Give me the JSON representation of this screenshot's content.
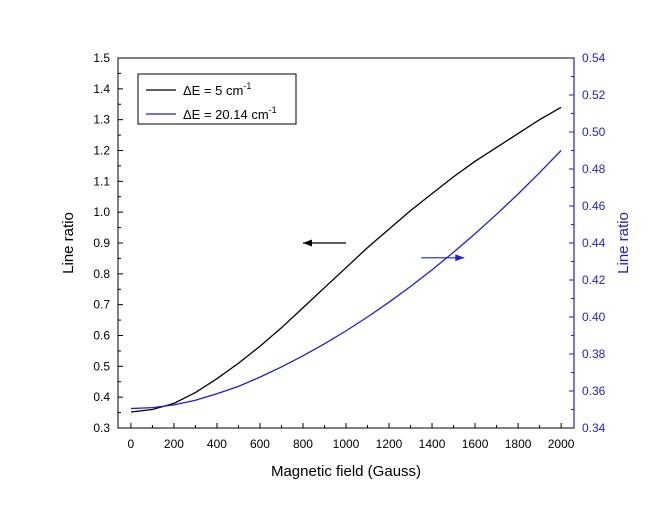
{
  "chart_data": {
    "type": "line",
    "title": "",
    "xlabel": "Magnetic field (Gauss)",
    "ylabel_left": "Line ratio",
    "ylabel_right": "Line ratio",
    "xlim": [
      -60,
      2060
    ],
    "ylim_left": [
      0.3,
      1.5
    ],
    "ylim_right": [
      0.34,
      0.54
    ],
    "x_ticks": [
      0,
      200,
      400,
      600,
      800,
      1000,
      1200,
      1400,
      1600,
      1800,
      2000
    ],
    "y_left_ticks": [
      "0.3",
      "0.4",
      "0.5",
      "0.6",
      "0.7",
      "0.8",
      "0.9",
      "1.0",
      "1.1",
      "1.2",
      "1.3",
      "1.4",
      "1.5"
    ],
    "y_right_ticks": [
      "0.34",
      "0.36",
      "0.38",
      "0.40",
      "0.42",
      "0.44",
      "0.46",
      "0.48",
      "0.50",
      "0.52",
      "0.54"
    ],
    "grid": false,
    "legend_position": "top-left",
    "colors": {
      "series1": "#000000",
      "series2": "#1f1fd6"
    },
    "series": [
      {
        "name": "ΔE = 5 cm-1",
        "label_main": "ΔE = 5 cm",
        "label_sup": "-1",
        "axis": "left",
        "x": [
          0,
          100,
          200,
          300,
          400,
          500,
          600,
          700,
          800,
          900,
          1000,
          1100,
          1200,
          1300,
          1400,
          1500,
          1600,
          1700,
          1800,
          1900,
          2000
        ],
        "y": [
          0.352,
          0.36,
          0.38,
          0.415,
          0.46,
          0.51,
          0.565,
          0.625,
          0.69,
          0.755,
          0.82,
          0.885,
          0.945,
          1.005,
          1.06,
          1.115,
          1.165,
          1.21,
          1.255,
          1.3,
          1.34
        ]
      },
      {
        "name": "ΔE = 20.14 cm-1",
        "label_main": "ΔE = 20.14 cm",
        "label_sup": "-1",
        "axis": "right",
        "x": [
          0,
          100,
          200,
          300,
          400,
          500,
          600,
          700,
          800,
          900,
          1000,
          1100,
          1200,
          1300,
          1400,
          1500,
          1600,
          1700,
          1800,
          1900,
          2000
        ],
        "y": [
          0.3505,
          0.351,
          0.3525,
          0.355,
          0.3585,
          0.3625,
          0.3675,
          0.373,
          0.379,
          0.3855,
          0.3925,
          0.4,
          0.408,
          0.4165,
          0.4255,
          0.435,
          0.445,
          0.4555,
          0.4665,
          0.478,
          0.49
        ]
      }
    ],
    "annotations": [
      {
        "text": "←",
        "meaning": "arrow pointing left (black curve uses left axis)",
        "axis": "left",
        "x_from": 1000,
        "x_to": 800,
        "y": 0.9
      },
      {
        "text": "→",
        "meaning": "arrow pointing right (blue curve uses right axis)",
        "axis": "right",
        "x_from": 1350,
        "x_to": 1550,
        "y": 0.432
      }
    ]
  }
}
